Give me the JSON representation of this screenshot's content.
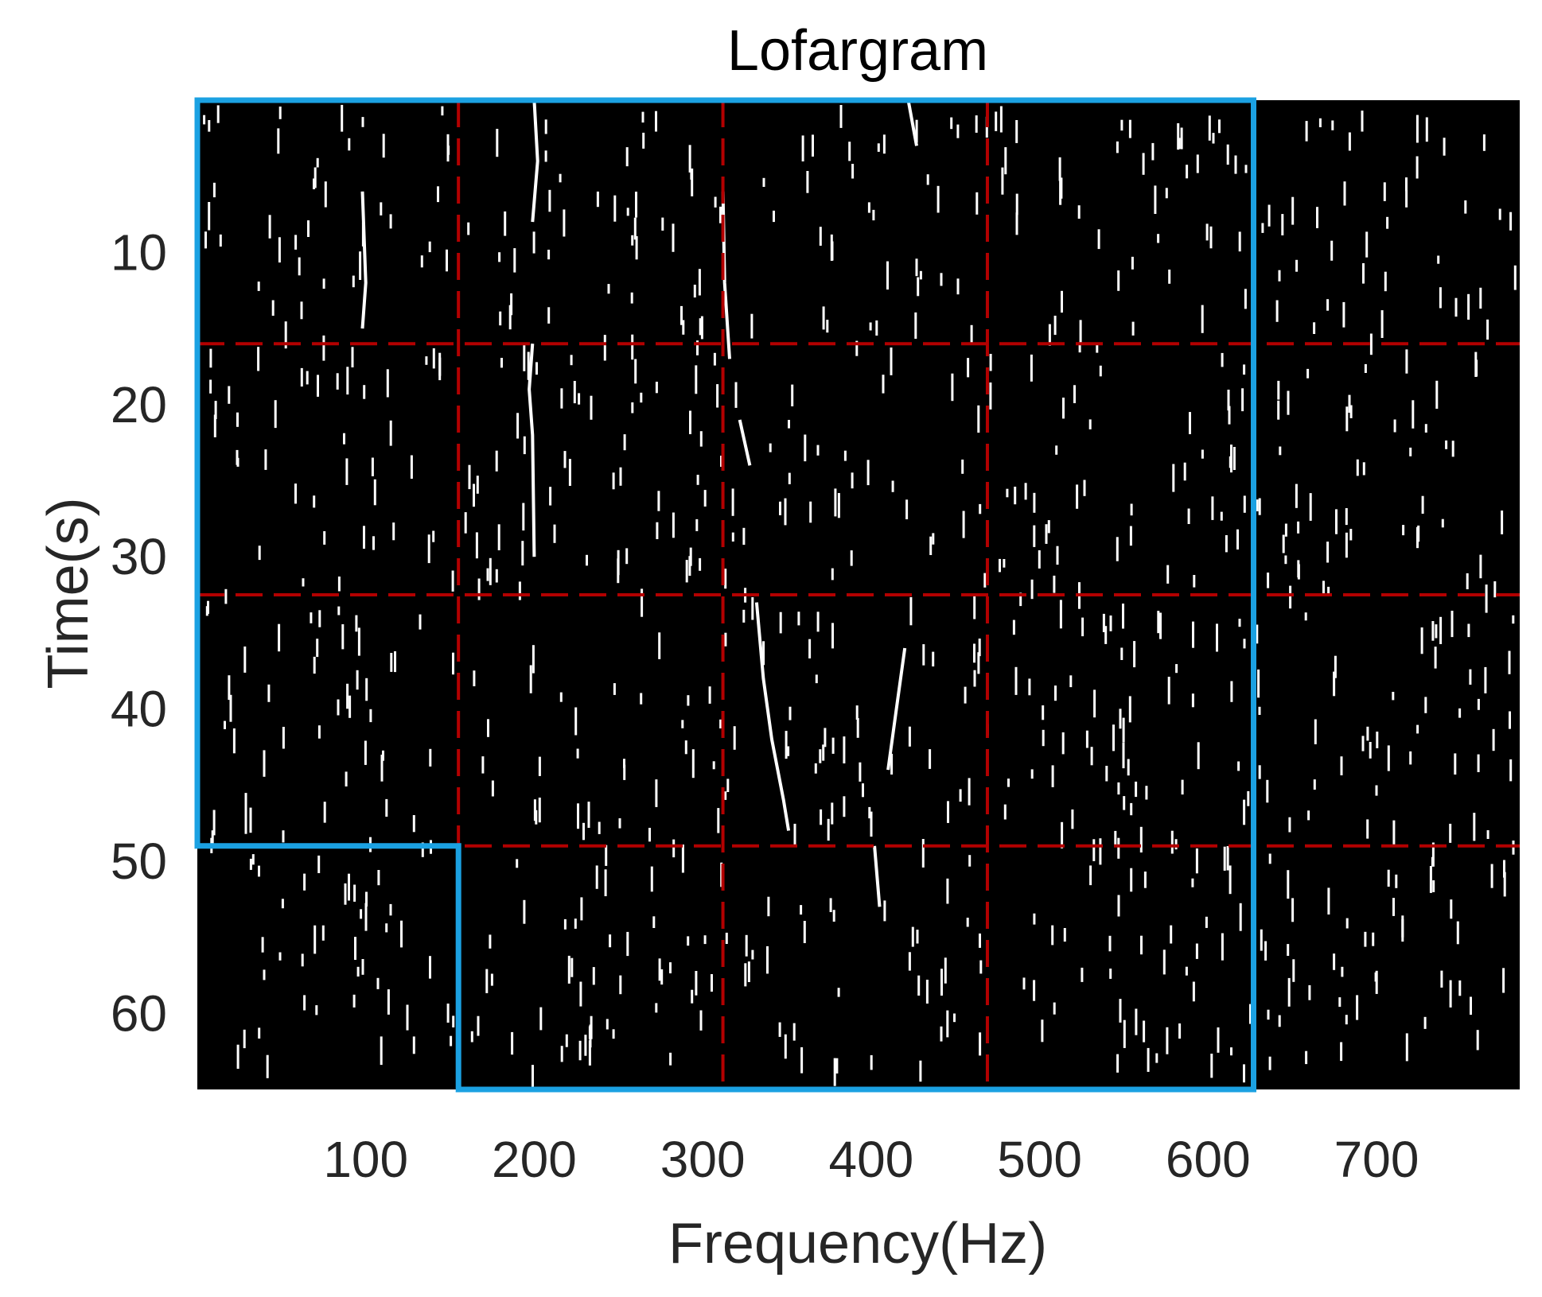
{
  "chart_data": {
    "type": "heatmap",
    "title": "Lofargram",
    "xlabel": "Frequency(Hz)",
    "ylabel": "Time(s)",
    "xlim": [
      0,
      785
    ],
    "ylim": [
      0,
      65
    ],
    "y_reversed": true,
    "xticks": [
      100,
      200,
      300,
      400,
      500,
      600,
      700
    ],
    "yticks": [
      10,
      20,
      30,
      40,
      50,
      60
    ],
    "grid_x": [
      155,
      312,
      469
    ],
    "grid_y": [
      16,
      32.5,
      49
    ],
    "background_color": "#000000",
    "speckle_color": "#ffffff",
    "grid_color": "#b30000",
    "region_color": "#1ba1e2",
    "region_polygon": [
      [
        0,
        0
      ],
      [
        627,
        0
      ],
      [
        627,
        65
      ],
      [
        155,
        65
      ],
      [
        155,
        49
      ],
      [
        0,
        49
      ]
    ],
    "spectral_lines": [
      {
        "points": [
          [
            98,
            6
          ],
          [
            100,
            12
          ],
          [
            98,
            15
          ]
        ]
      },
      {
        "points": [
          [
            200,
            0
          ],
          [
            202,
            4
          ],
          [
            199,
            8
          ]
        ]
      },
      {
        "points": [
          [
            199,
            16
          ],
          [
            197,
            19
          ],
          [
            199,
            22
          ],
          [
            200,
            30
          ]
        ]
      },
      {
        "points": [
          [
            312,
            6
          ],
          [
            313,
            12
          ],
          [
            316,
            17
          ]
        ]
      },
      {
        "points": [
          [
            322,
            21
          ],
          [
            328,
            24
          ]
        ]
      },
      {
        "points": [
          [
            332,
            33
          ],
          [
            336,
            38
          ],
          [
            341,
            42
          ],
          [
            348,
            46
          ],
          [
            351,
            48
          ]
        ]
      },
      {
        "points": [
          [
            420,
            36
          ],
          [
            415,
            40
          ],
          [
            410,
            44
          ]
        ]
      },
      {
        "points": [
          [
            402,
            49
          ],
          [
            405,
            53
          ]
        ]
      },
      {
        "points": [
          [
            422,
            0
          ],
          [
            427,
            3
          ]
        ]
      }
    ]
  }
}
